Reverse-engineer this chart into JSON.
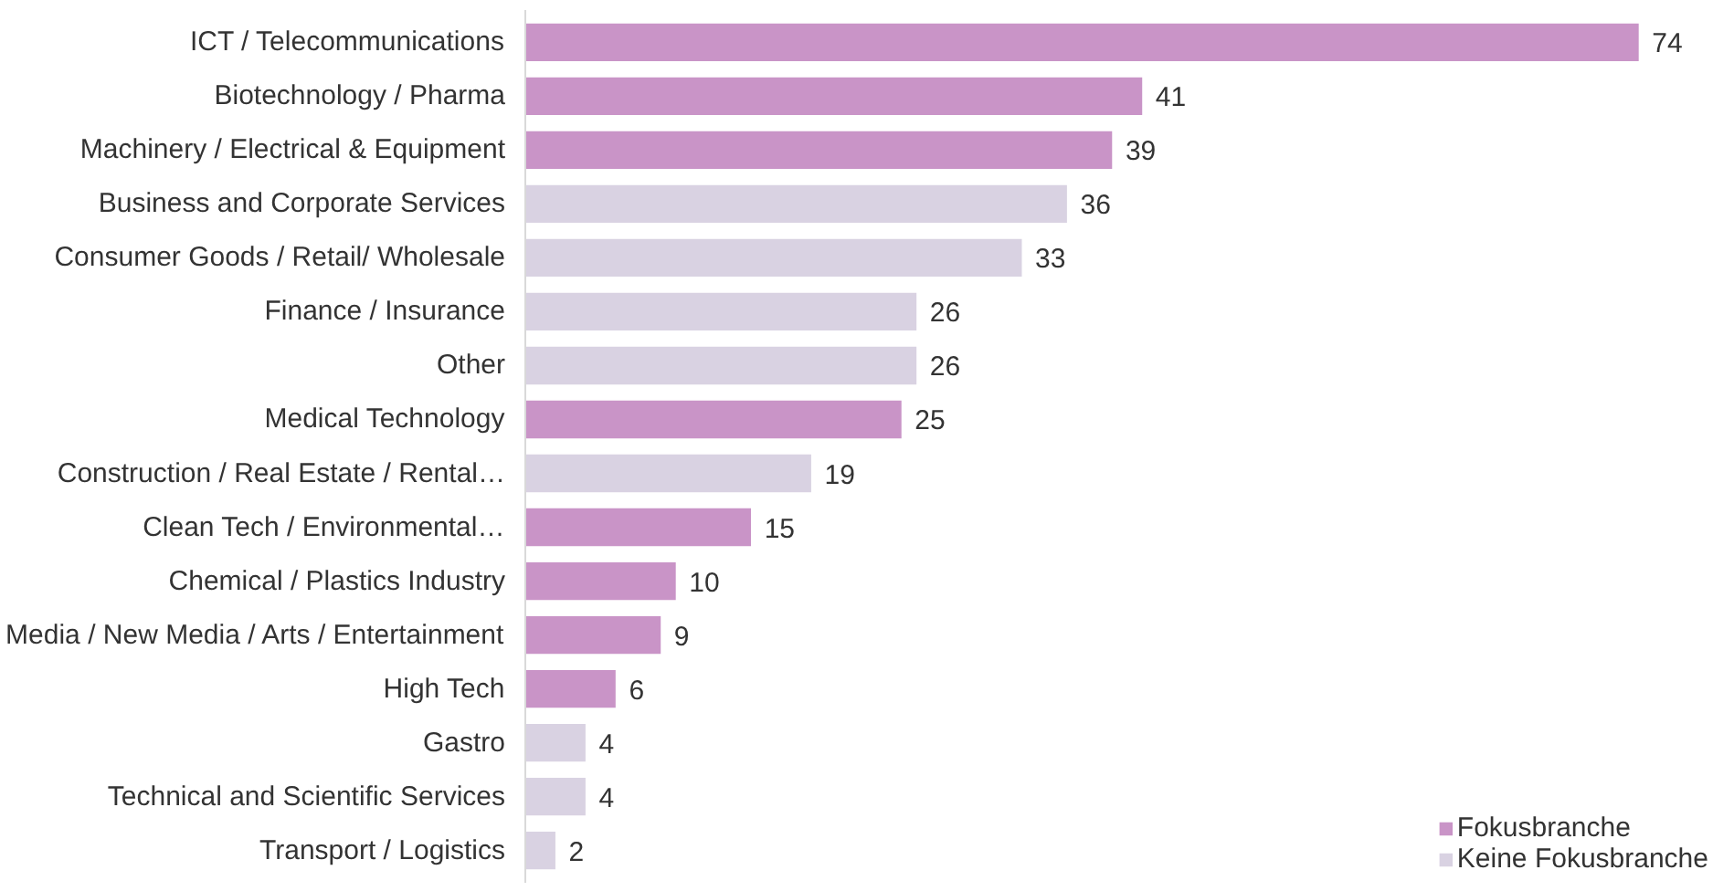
{
  "chart_data": {
    "type": "bar",
    "orientation": "horizontal",
    "data_labels": true,
    "grid": false,
    "legend": "bottom right",
    "categories": [
      "ICT / Telecommunications",
      "Biotechnology / Pharma",
      "Machinery / Electrical & Equipment",
      "Business and Corporate Services",
      "Consumer Goods / Retail/ Wholesale",
      "Finance / Insurance",
      "Other",
      "Medical Technology",
      "Construction / Real Estate / Rental…",
      "Clean Tech / Environmental…",
      "Chemical / Plastics Industry",
      "Media / New Media / Arts / Entertainment",
      "High Tech",
      "Gastro",
      "Technical and Scientific Services",
      "Transport / Logistics"
    ],
    "series": [
      {
        "name": "Fokusbranche",
        "color": "#c994c7",
        "values": [
          74,
          41,
          39,
          null,
          null,
          null,
          null,
          25,
          null,
          15,
          10,
          9,
          6,
          null,
          null,
          null
        ]
      },
      {
        "name": "Keine Fokusbranche",
        "color": "#d9d2e2",
        "values": [
          null,
          null,
          null,
          36,
          33,
          26,
          26,
          null,
          19,
          null,
          null,
          null,
          null,
          4,
          4,
          2
        ]
      }
    ]
  }
}
